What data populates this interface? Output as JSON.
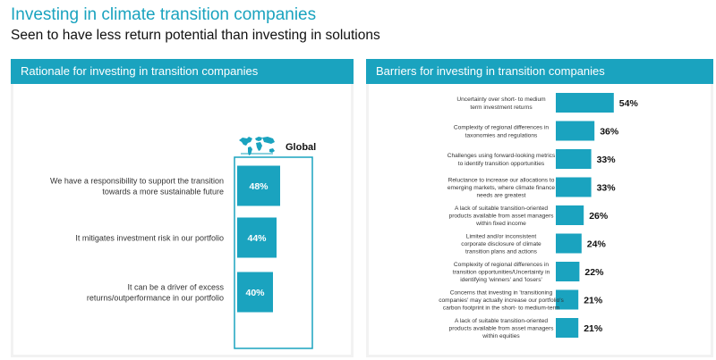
{
  "page": {
    "title": "Investing in climate transition companies",
    "subtitle": "Seen to have less return potential than investing in solutions"
  },
  "colors": {
    "accent": "#1aa3bf",
    "panel_bg": "#f2f2f2",
    "text": "#333333"
  },
  "left_panel": {
    "header": "Rationale for investing in transition companies",
    "legend_icon": "world-map-icon",
    "legend_label": "Global"
  },
  "right_panel": {
    "header": "Barriers for investing in transition companies"
  },
  "chart_data": [
    {
      "type": "bar",
      "orientation": "horizontal",
      "title": "Rationale for investing in transition companies",
      "series": [
        {
          "name": "Global",
          "values": [
            48,
            44,
            40
          ]
        }
      ],
      "categories": [
        [
          "We have a responsibility to support the transition",
          "towards a more sustainable future"
        ],
        [
          "It mitigates investment risk in our portfolio"
        ],
        [
          "It can be a driver of excess",
          "returns/outperformance in our portfolio"
        ]
      ],
      "value_labels": [
        "48%",
        "44%",
        "40%"
      ],
      "unit": "%",
      "xlim": [
        0,
        100
      ]
    },
    {
      "type": "bar",
      "orientation": "horizontal",
      "title": "Barriers for investing in transition companies",
      "series": [
        {
          "values": [
            54,
            36,
            33,
            33,
            26,
            24,
            22,
            21,
            21
          ]
        }
      ],
      "categories": [
        [
          "Uncertainty over short- to medium",
          "term investment returns"
        ],
        [
          "Complexity of regional differences in",
          "taxonomies and regulations"
        ],
        [
          "Challenges using forward-looking metrics",
          "to identify transition opportunities"
        ],
        [
          "Reluctance to increase our allocations to",
          "emerging markets, where climate finance",
          "needs are greatest"
        ],
        [
          "A lack of suitable transition-oriented",
          "products available from asset managers",
          "within fixed income"
        ],
        [
          "Limited and/or inconsistent",
          "corporate disclosure of climate",
          "transition plans and actions"
        ],
        [
          "Complexity of regional differences in",
          "transition opportunities/Uncertainty in",
          "identifying 'winners' and 'losers'"
        ],
        [
          "Concerns that investing in 'transitioning",
          "companies' may actually increase our portfolio's",
          "carbon footprint in the short- to medium-term"
        ],
        [
          "A lack of suitable transition-oriented",
          "products available from asset managers",
          "within equities"
        ]
      ],
      "value_labels": [
        "54%",
        "36%",
        "33%",
        "33%",
        "26%",
        "24%",
        "22%",
        "21%",
        "21%"
      ],
      "unit": "%",
      "xlim": [
        0,
        100
      ]
    }
  ]
}
